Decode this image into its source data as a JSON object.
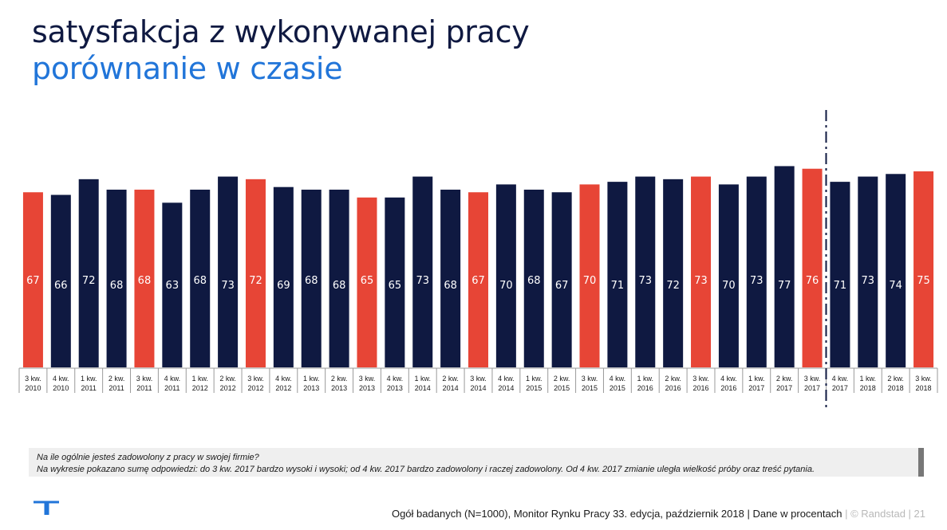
{
  "title": "satysfakcja z wykonywanej pracy",
  "subtitle": "porównanie w czasie",
  "colors": {
    "navy": "#0f1941",
    "red": "#e74536",
    "blue": "#2175d9"
  },
  "chart_data": {
    "type": "bar",
    "categories": [
      [
        "3 kw.",
        "2010"
      ],
      [
        "4 kw.",
        "2010"
      ],
      [
        "1 kw.",
        "2011"
      ],
      [
        "2 kw.",
        "2011"
      ],
      [
        "3 kw.",
        "2011"
      ],
      [
        "4 kw.",
        "2011"
      ],
      [
        "1 kw.",
        "2012"
      ],
      [
        "2 kw.",
        "2012"
      ],
      [
        "3 kw.",
        "2012"
      ],
      [
        "4 kw.",
        "2012"
      ],
      [
        "1 kw.",
        "2013"
      ],
      [
        "2 kw.",
        "2013"
      ],
      [
        "3 kw.",
        "2013"
      ],
      [
        "4 kw.",
        "2013"
      ],
      [
        "1 kw.",
        "2014"
      ],
      [
        "2 kw.",
        "2014"
      ],
      [
        "3 kw.",
        "2014"
      ],
      [
        "4 kw.",
        "2014"
      ],
      [
        "1 kw.",
        "2015"
      ],
      [
        "2 kw.",
        "2015"
      ],
      [
        "3 kw.",
        "2015"
      ],
      [
        "4 kw.",
        "2015"
      ],
      [
        "1 kw.",
        "2016"
      ],
      [
        "2 kw.",
        "2016"
      ],
      [
        "3 kw.",
        "2016"
      ],
      [
        "4 kw.",
        "2016"
      ],
      [
        "1 kw.",
        "2017"
      ],
      [
        "2 kw.",
        "2017"
      ],
      [
        "3 kw.",
        "2017"
      ],
      [
        "4 kw.",
        "2017"
      ],
      [
        "1 kw.",
        "2018"
      ],
      [
        "2 kw.",
        "2018"
      ],
      [
        "3 kw.",
        "2018"
      ]
    ],
    "values": [
      67,
      66,
      72,
      68,
      68,
      63,
      68,
      73,
      72,
      69,
      68,
      68,
      65,
      65,
      73,
      68,
      67,
      70,
      68,
      67,
      70,
      71,
      73,
      72,
      73,
      70,
      73,
      77,
      76,
      71,
      73,
      74,
      75
    ],
    "highlight": [
      true,
      false,
      false,
      false,
      true,
      false,
      false,
      false,
      true,
      false,
      false,
      false,
      true,
      false,
      false,
      false,
      true,
      false,
      false,
      false,
      true,
      false,
      false,
      false,
      true,
      false,
      false,
      false,
      true,
      false,
      false,
      false,
      true
    ],
    "divider_after_index": 28,
    "ylim": [
      0,
      100
    ]
  },
  "note": {
    "question": "Na ile ogólnie jesteś zadowolony z pracy w swojej firmie?",
    "explanation": "Na wykresie pokazano sumę odpowiedzi: do 3 kw. 2017 bardzo wysoki i wysoki; od 4 kw. 2017 bardzo zadowolony i raczej zadowolony. Od 4 kw. 2017 zmianie uległa wielkość próby oraz treść pytania."
  },
  "footer": {
    "source": "Ogół badanych (N=1000), Monitor Rynku Pracy 33. edycja, październik 2018 | Dane w procentach",
    "sep1": " | ",
    "copyright": "© Randstad",
    "sep2": " | ",
    "page": "21"
  }
}
